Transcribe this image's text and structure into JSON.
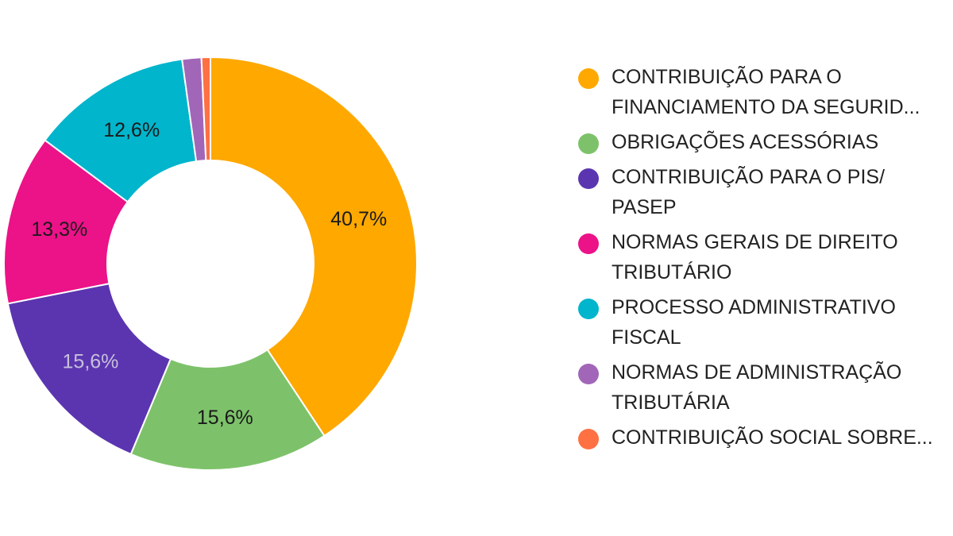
{
  "chart_data": {
    "type": "pie",
    "style": "donut",
    "legend_position": "right",
    "slices": [
      {
        "label": "CONTRIBUIÇÃO PARA O\nFINANCIAMENTO DA SEGURID...",
        "value": 40.7,
        "value_label": "40,7%",
        "color": "#FFA800",
        "label_color": "#1a1a1a"
      },
      {
        "label": "OBRIGAÇÕES ACESSÓRIAS",
        "value": 15.6,
        "value_label": "15,6%",
        "color": "#7DC26A",
        "label_color": "#1a1a1a"
      },
      {
        "label": "CONTRIBUIÇÃO PARA O PIS/\nPASEP",
        "value": 15.6,
        "value_label": "15,6%",
        "color": "#5B35B0",
        "label_color": "#C7C0DA"
      },
      {
        "label": "NORMAS GERAIS DE DIREITO\nTRIBUTÁRIO",
        "value": 13.3,
        "value_label": "13,3%",
        "color": "#EC1288",
        "label_color": "#1a1a1a"
      },
      {
        "label": "PROCESSO ADMINISTRATIVO\nFISCAL",
        "value": 12.6,
        "value_label": "12,6%",
        "color": "#00B5CC",
        "label_color": "#1a1a1a"
      },
      {
        "label": "NORMAS DE ADMINISTRAÇÃO\nTRIBUTÁRIA",
        "value": 1.5,
        "value_label": "",
        "color": "#A166B8",
        "label_color": "#1a1a1a"
      },
      {
        "label": "CONTRIBUIÇÃO SOCIAL SOBRE...",
        "value": 0.7,
        "value_label": "",
        "color": "#FF7043",
        "label_color": "#1a1a1a"
      }
    ]
  }
}
